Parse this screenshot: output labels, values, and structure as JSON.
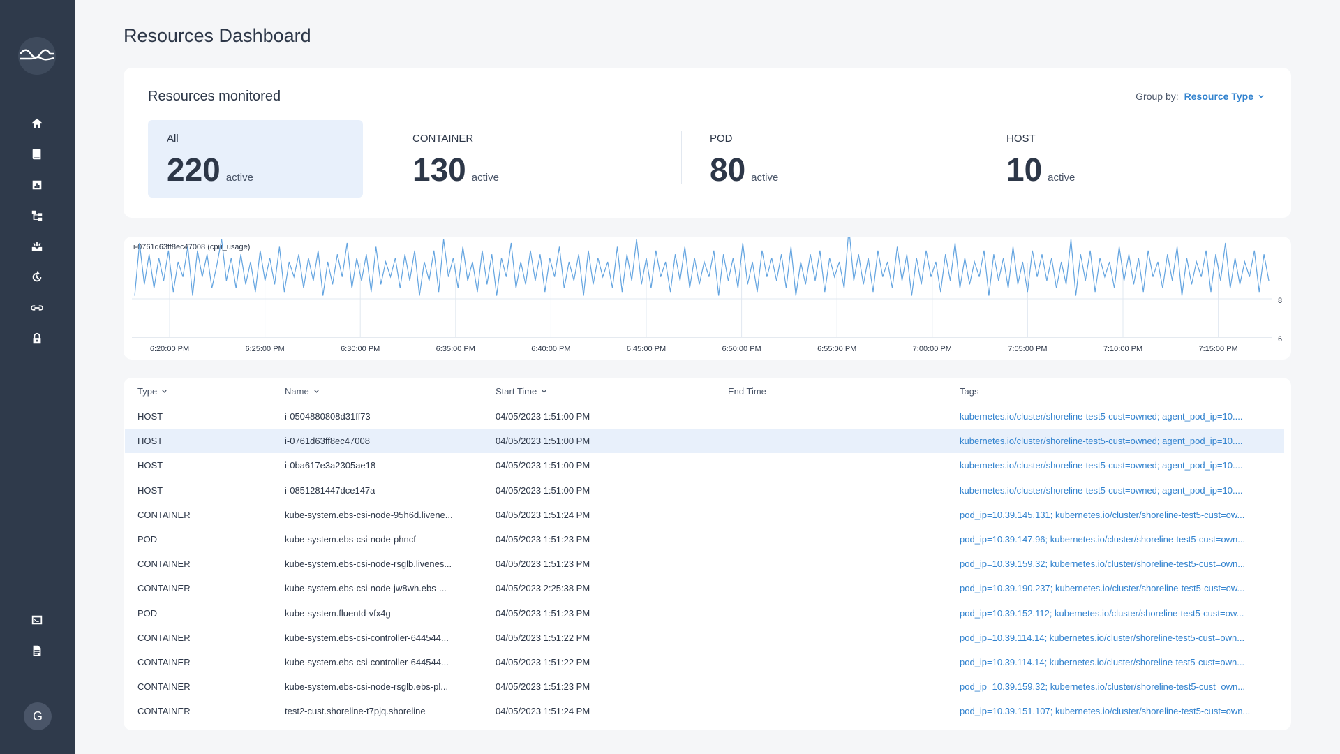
{
  "app": {
    "page_title": "Resources Dashboard",
    "avatar_initial": "G"
  },
  "sidebar": {
    "items": [
      {
        "icon": "home-icon"
      },
      {
        "icon": "book-icon"
      },
      {
        "icon": "bar-chart-icon"
      },
      {
        "icon": "topology-icon"
      },
      {
        "icon": "inbox-icon"
      },
      {
        "icon": "refresh-icon"
      },
      {
        "icon": "link-icon"
      },
      {
        "icon": "lock-icon"
      }
    ],
    "bottom_items": [
      {
        "icon": "terminal-icon"
      },
      {
        "icon": "document-icon"
      }
    ]
  },
  "resources": {
    "title": "Resources monitored",
    "group_by_label": "Group by:",
    "group_by_value": "Resource Type",
    "stats": [
      {
        "label": "All",
        "value": "220",
        "unit": "active",
        "selected": true
      },
      {
        "label": "CONTAINER",
        "value": "130",
        "unit": "active",
        "selected": false
      },
      {
        "label": "POD",
        "value": "80",
        "unit": "active",
        "selected": false
      },
      {
        "label": "HOST",
        "value": "10",
        "unit": "active",
        "selected": false
      }
    ]
  },
  "chart_data": {
    "type": "line",
    "title": "i-0761d63ff8ec47008 (cpu_usage)",
    "x_ticks": [
      "6:20:00 PM",
      "6:25:00 PM",
      "6:30:00 PM",
      "6:35:00 PM",
      "6:40:00 PM",
      "6:45:00 PM",
      "6:50:00 PM",
      "6:55:00 PM",
      "7:00:00 PM",
      "7:05:00 PM",
      "7:10:00 PM",
      "7:15:00 PM"
    ],
    "y_ticks": [
      "8",
      "6"
    ],
    "ylim": [
      6,
      8
    ],
    "series": [
      {
        "color": "#63a4e0",
        "values": [
          7.1,
          8.5,
          7.4,
          8.2,
          7.3,
          8.1,
          7.5,
          8.3,
          7.2,
          8.0,
          7.6,
          8.4,
          7.1,
          8.3,
          7.6,
          8.2,
          7.3,
          7.9,
          8.6,
          7.5,
          8.1,
          7.3,
          8.2,
          7.4,
          8.0,
          7.2,
          8.3,
          7.5,
          8.1,
          7.4,
          8.4,
          7.2,
          8.0,
          7.6,
          8.2,
          7.3,
          8.1,
          7.5,
          8.3,
          7.1,
          8.0,
          7.4,
          8.2,
          7.6,
          8.5,
          7.3,
          8.1,
          7.5,
          8.2,
          7.2,
          8.4,
          7.4,
          8.0,
          7.6,
          8.1,
          7.3,
          8.2,
          7.5,
          8.3,
          7.1,
          8.0,
          7.5,
          8.3,
          7.2,
          8.6,
          7.6,
          8.1,
          7.3,
          8.4,
          7.5,
          8.0,
          7.2,
          8.3,
          7.4,
          8.2,
          7.1,
          8.1,
          7.6,
          8.5,
          7.3,
          8.0,
          7.4,
          8.3,
          7.5,
          8.2,
          7.2,
          8.1,
          7.6,
          8.4,
          7.3,
          8.0,
          7.5,
          8.2,
          7.1,
          8.3,
          7.4,
          8.1,
          7.6,
          8.0,
          7.3,
          8.4,
          7.2,
          8.2,
          7.5,
          8.6,
          7.4,
          8.1,
          7.3,
          8.3,
          7.6,
          8.0,
          7.2,
          8.2,
          7.5,
          8.4,
          7.3,
          8.1,
          7.4,
          8.0,
          7.6,
          8.3,
          7.1,
          8.2,
          7.5,
          8.1,
          7.3,
          8.5,
          7.4,
          8.0,
          7.2,
          8.3,
          7.6,
          8.1,
          7.5,
          8.2,
          7.3,
          8.4,
          7.1,
          8.0,
          7.4,
          8.2,
          7.5,
          8.3,
          7.2,
          8.1,
          7.6,
          8.0,
          7.3,
          8.9,
          7.5,
          8.2,
          7.4,
          8.1,
          7.2,
          8.3,
          7.6,
          8.0,
          7.3,
          8.4,
          7.5,
          8.2,
          7.1,
          8.1,
          7.4,
          8.3,
          7.6,
          8.0,
          7.2,
          8.2,
          7.5,
          8.5,
          7.3,
          8.1,
          7.4,
          8.0,
          7.6,
          8.3,
          7.1,
          8.2,
          7.5,
          8.1,
          7.3,
          8.4,
          7.4,
          8.0,
          7.2,
          8.3,
          7.6,
          8.2,
          7.5,
          8.1,
          7.3,
          8.0,
          7.4,
          8.6,
          7.1,
          8.2,
          7.5,
          8.3,
          7.2,
          8.1,
          7.6,
          8.0,
          7.3,
          8.4,
          7.5,
          8.2,
          7.4,
          8.1,
          7.2,
          8.3,
          7.6,
          8.0,
          7.3,
          8.2,
          7.5,
          8.4,
          7.1,
          8.1,
          7.4,
          8.0,
          7.6,
          8.3,
          7.2,
          8.2,
          7.5,
          8.5,
          7.3,
          8.1,
          7.4,
          8.0,
          7.6,
          8.3,
          7.2,
          8.2,
          7.5
        ]
      }
    ]
  },
  "table": {
    "columns": [
      {
        "label": "Type",
        "sortable": true
      },
      {
        "label": "Name",
        "sortable": true
      },
      {
        "label": "Start Time",
        "sortable": true
      },
      {
        "label": "End Time",
        "sortable": false
      },
      {
        "label": "Tags",
        "sortable": false
      }
    ],
    "rows": [
      {
        "type": "HOST",
        "name": "i-0504880808d31ff73",
        "start": "04/05/2023 1:51:00 PM",
        "end": "",
        "tags": "kubernetes.io/cluster/shoreline-test5-cust=owned; agent_pod_ip=10....",
        "selected": false
      },
      {
        "type": "HOST",
        "name": "i-0761d63ff8ec47008",
        "start": "04/05/2023 1:51:00 PM",
        "end": "",
        "tags": "kubernetes.io/cluster/shoreline-test5-cust=owned; agent_pod_ip=10....",
        "selected": true
      },
      {
        "type": "HOST",
        "name": "i-0ba617e3a2305ae18",
        "start": "04/05/2023 1:51:00 PM",
        "end": "",
        "tags": "kubernetes.io/cluster/shoreline-test5-cust=owned; agent_pod_ip=10....",
        "selected": false
      },
      {
        "type": "HOST",
        "name": "i-0851281447dce147a",
        "start": "04/05/2023 1:51:00 PM",
        "end": "",
        "tags": "kubernetes.io/cluster/shoreline-test5-cust=owned; agent_pod_ip=10....",
        "selected": false
      },
      {
        "type": "CONTAINER",
        "name": "kube-system.ebs-csi-node-95h6d.livene...",
        "start": "04/05/2023 1:51:24 PM",
        "end": "",
        "tags": "pod_ip=10.39.145.131; kubernetes.io/cluster/shoreline-test5-cust=ow...",
        "selected": false
      },
      {
        "type": "POD",
        "name": "kube-system.ebs-csi-node-phncf",
        "start": "04/05/2023 1:51:23 PM",
        "end": "",
        "tags": "pod_ip=10.39.147.96; kubernetes.io/cluster/shoreline-test5-cust=own...",
        "selected": false
      },
      {
        "type": "CONTAINER",
        "name": "kube-system.ebs-csi-node-rsglb.livenes...",
        "start": "04/05/2023 1:51:23 PM",
        "end": "",
        "tags": "pod_ip=10.39.159.32; kubernetes.io/cluster/shoreline-test5-cust=own...",
        "selected": false
      },
      {
        "type": "CONTAINER",
        "name": "kube-system.ebs-csi-node-jw8wh.ebs-...",
        "start": "04/05/2023 2:25:38 PM",
        "end": "",
        "tags": "pod_ip=10.39.190.237; kubernetes.io/cluster/shoreline-test5-cust=ow...",
        "selected": false
      },
      {
        "type": "POD",
        "name": "kube-system.fluentd-vfx4g",
        "start": "04/05/2023 1:51:23 PM",
        "end": "",
        "tags": "pod_ip=10.39.152.112; kubernetes.io/cluster/shoreline-test5-cust=ow...",
        "selected": false
      },
      {
        "type": "CONTAINER",
        "name": "kube-system.ebs-csi-controller-644544...",
        "start": "04/05/2023 1:51:22 PM",
        "end": "",
        "tags": "pod_ip=10.39.114.14; kubernetes.io/cluster/shoreline-test5-cust=own...",
        "selected": false
      },
      {
        "type": "CONTAINER",
        "name": "kube-system.ebs-csi-controller-644544...",
        "start": "04/05/2023 1:51:22 PM",
        "end": "",
        "tags": "pod_ip=10.39.114.14; kubernetes.io/cluster/shoreline-test5-cust=own...",
        "selected": false
      },
      {
        "type": "CONTAINER",
        "name": "kube-system.ebs-csi-node-rsglb.ebs-pl...",
        "start": "04/05/2023 1:51:23 PM",
        "end": "",
        "tags": "pod_ip=10.39.159.32; kubernetes.io/cluster/shoreline-test5-cust=own...",
        "selected": false
      },
      {
        "type": "CONTAINER",
        "name": "test2-cust.shoreline-t7pjq.shoreline",
        "start": "04/05/2023 1:51:24 PM",
        "end": "",
        "tags": "pod_ip=10.39.151.107; kubernetes.io/cluster/shoreline-test5-cust=own...",
        "selected": false
      }
    ]
  },
  "colors": {
    "sidebar": "#2f3a4b",
    "accent": "#3182ce",
    "selected_bg": "#e8f0fb",
    "chart_line": "#63a4e0"
  }
}
